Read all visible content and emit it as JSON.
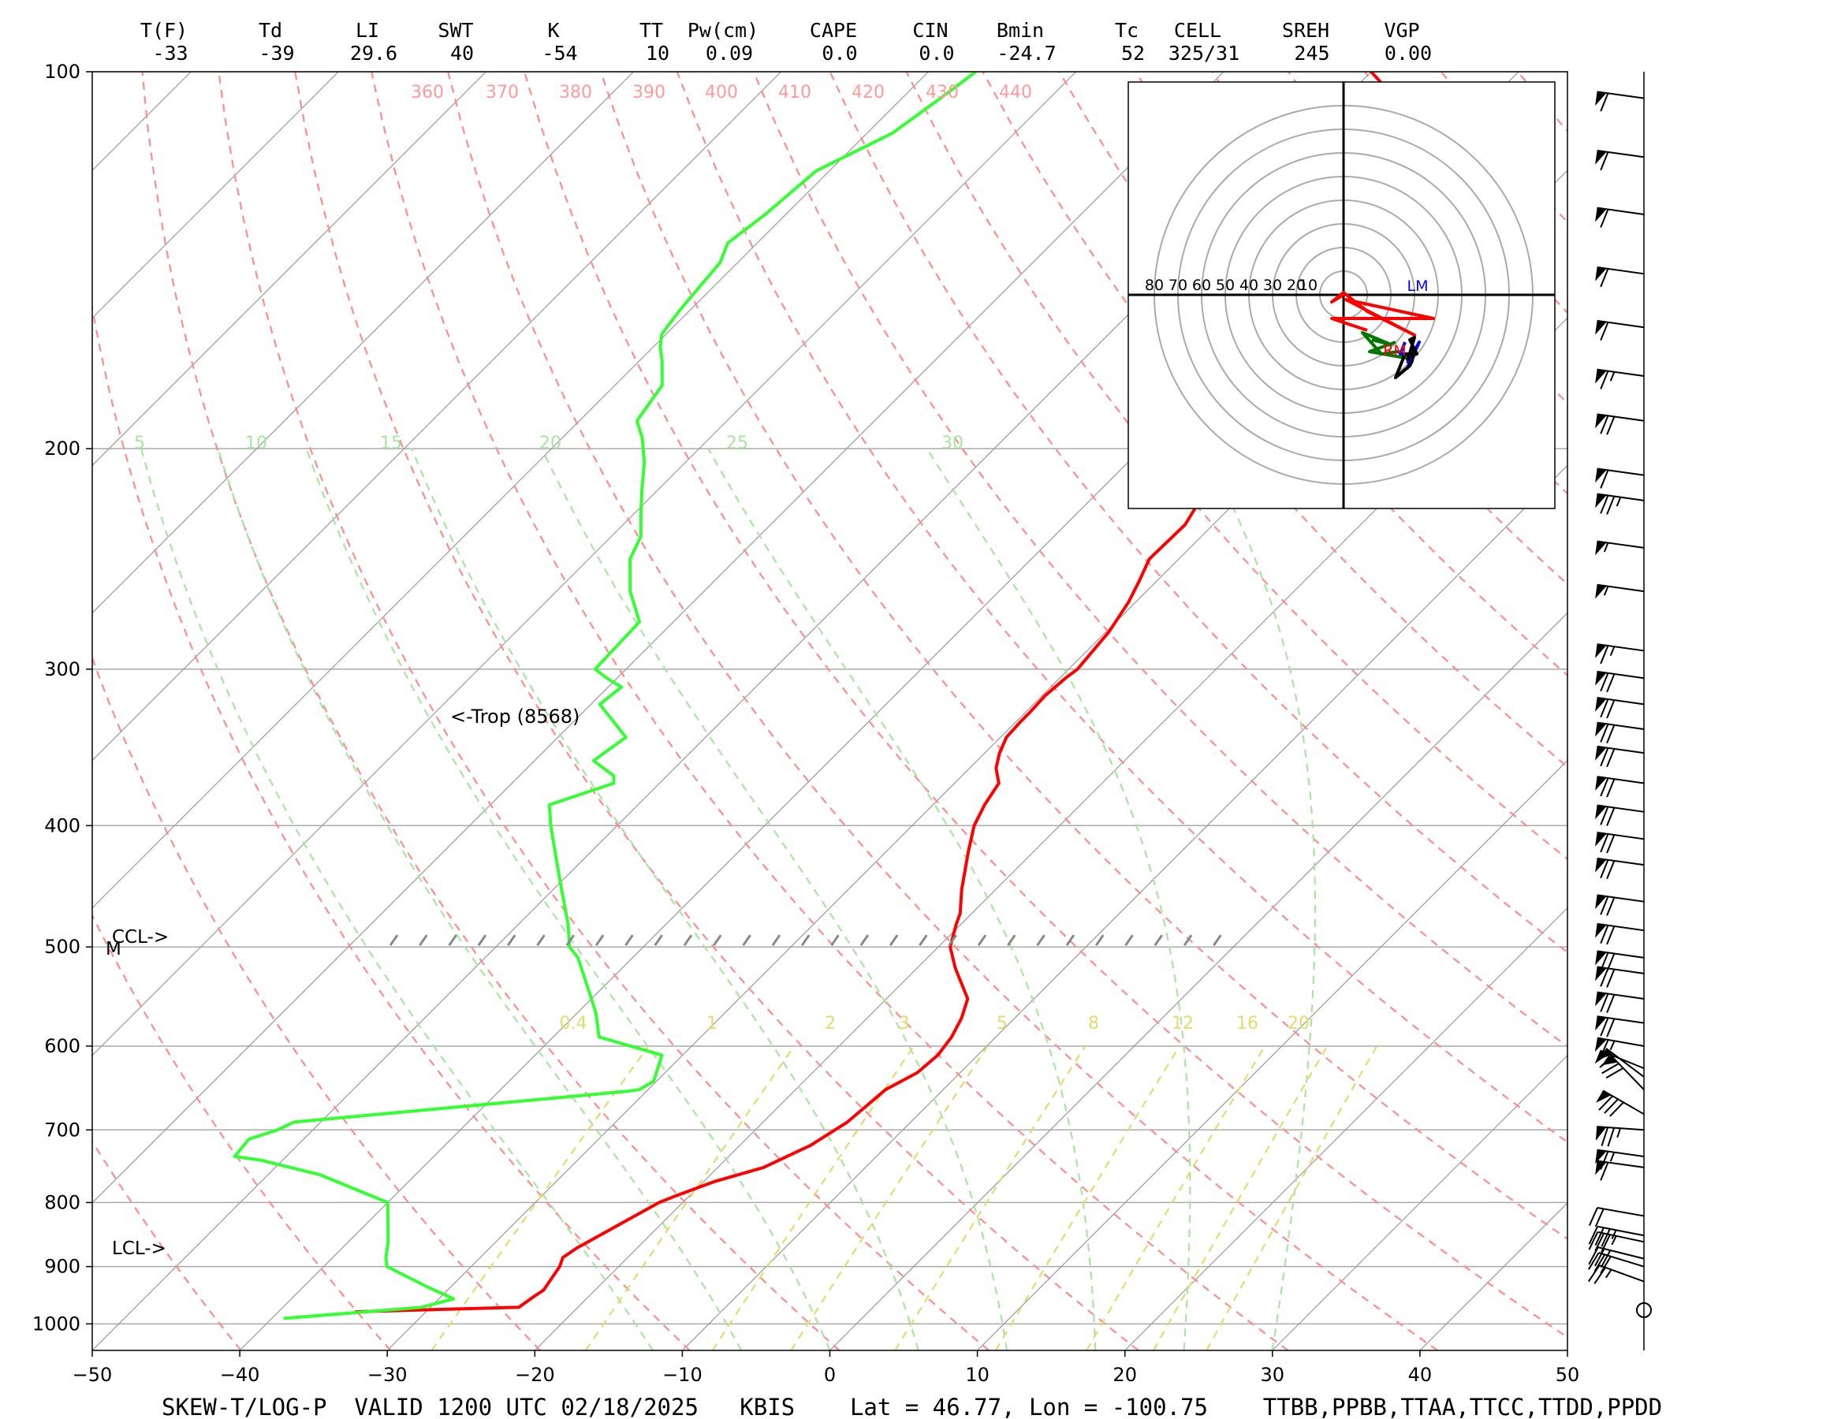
{
  "header": {
    "labels": [
      "T(F)",
      "Td",
      "LI",
      "SWT",
      "K",
      "TT",
      "Pw(cm)",
      "CAPE",
      "CIN",
      "Bmin",
      "Tc",
      "CELL",
      "SREH",
      "VGP"
    ],
    "values": [
      "-33",
      "-39",
      "29.6",
      "40",
      "-54",
      "10",
      "0.09",
      "0.0",
      "0.0",
      "-24.7",
      "52",
      "325/31",
      "245",
      "0.00"
    ]
  },
  "footer": {
    "title": "SKEW-T/LOG-P  VALID 1200 UTC 02/18/2025   KBIS    Lat = 46.77, Lon = -100.75    TTBB,PPBB,TTAA,TTCC,TTDD,PPDD"
  },
  "chart_data": {
    "type": "line",
    "title": "",
    "xlabel": "",
    "ylabel": "",
    "x_axis": {
      "range": [
        -50,
        50
      ],
      "ticks": [
        -50,
        -40,
        -30,
        -20,
        -10,
        0,
        10,
        20,
        30,
        40,
        50
      ],
      "unit": "deg C (skewed)"
    },
    "y_axis": {
      "range": [
        1050,
        100
      ],
      "scale": "log",
      "ticks": [
        1000,
        900,
        800,
        700,
        600,
        500,
        400,
        300,
        200,
        100
      ]
    },
    "grid": true,
    "colors": {
      "temperature": "#ff0000",
      "dewpoint": "#33ff33",
      "dry_adiabat": "#ff8c8c",
      "moist_adiabat": "#a8e6a0",
      "mixing_ratio": "#e0dc70",
      "isotherm": "#999999"
    },
    "dry_adiabat_labels": [
      "360",
      "370",
      "380",
      "390",
      "400",
      "410",
      "420",
      "430",
      "440"
    ],
    "moist_adiabat_labels": [
      "5",
      "10",
      "15",
      "20",
      "25",
      "30"
    ],
    "mixing_ratio_labels": [
      "0.4",
      "1",
      "2",
      "3",
      "5",
      "8",
      "12",
      "16",
      "20"
    ],
    "annotations": [
      "<-Trop (8568)",
      "CCL->",
      "M",
      "LCL->"
    ],
    "series": [
      {
        "key": "temperature",
        "points": [
          [
            978,
            -34.8
          ],
          [
            970,
            -24.0
          ],
          [
            950,
            -23.7
          ],
          [
            940,
            -23.5
          ],
          [
            900,
            -24.0
          ],
          [
            885,
            -24.4
          ],
          [
            870,
            -24.1
          ],
          [
            800,
            -21.6
          ],
          [
            790,
            -20.9
          ],
          [
            770,
            -19.3
          ],
          [
            750,
            -16.9
          ],
          [
            720,
            -15.2
          ],
          [
            700,
            -14.6
          ],
          [
            690,
            -14.3
          ],
          [
            670,
            -14.1
          ],
          [
            650,
            -13.9
          ],
          [
            630,
            -12.9
          ],
          [
            610,
            -12.7
          ],
          [
            590,
            -13.0
          ],
          [
            570,
            -13.6
          ],
          [
            550,
            -14.5
          ],
          [
            520,
            -17.4
          ],
          [
            500,
            -19.2
          ],
          [
            480,
            -20.3
          ],
          [
            470,
            -20.8
          ],
          [
            450,
            -22.3
          ],
          [
            420,
            -24.4
          ],
          [
            400,
            -25.8
          ],
          [
            385,
            -26.5
          ],
          [
            370,
            -27.0
          ],
          [
            360,
            -28.2
          ],
          [
            350,
            -29.0
          ],
          [
            340,
            -29.6
          ],
          [
            330,
            -29.7
          ],
          [
            325,
            -29.7
          ],
          [
            315,
            -29.8
          ],
          [
            305,
            -29.6
          ],
          [
            300,
            -29.4
          ],
          [
            280,
            -29.8
          ],
          [
            265,
            -30.5
          ],
          [
            255,
            -31.2
          ],
          [
            245,
            -32.0
          ],
          [
            230,
            -31.9
          ],
          [
            210,
            -33.2
          ],
          [
            205,
            -34.2
          ],
          [
            200,
            -35.0
          ],
          [
            194,
            -35.2
          ],
          [
            185,
            -36.1
          ],
          [
            175,
            -37.1
          ],
          [
            165,
            -38.2
          ],
          [
            155,
            -39.8
          ],
          [
            145,
            -40.5
          ],
          [
            135,
            -42.1
          ],
          [
            130,
            -42.8
          ],
          [
            120,
            -44.0
          ],
          [
            115,
            -45.2
          ],
          [
            110,
            -46.0
          ],
          [
            106,
            -47.2
          ],
          [
            102,
            -48.6
          ],
          [
            100,
            -50.0
          ]
        ]
      },
      {
        "key": "dewpoint",
        "points": [
          [
            990,
            -39.2
          ],
          [
            970,
            -30.6
          ],
          [
            955,
            -29.0
          ],
          [
            935,
            -31.5
          ],
          [
            900,
            -35.7
          ],
          [
            885,
            -36.4
          ],
          [
            860,
            -37.3
          ],
          [
            800,
            -40.0
          ],
          [
            760,
            -46.5
          ],
          [
            740,
            -51.5
          ],
          [
            735,
            -53.5
          ],
          [
            712,
            -53.7
          ],
          [
            700,
            -52.4
          ],
          [
            690,
            -51.8
          ],
          [
            652,
            -31.3
          ],
          [
            650,
            -30.6
          ],
          [
            640,
            -30.2
          ],
          [
            610,
            -31.4
          ],
          [
            590,
            -36.9
          ],
          [
            565,
            -38.7
          ],
          [
            550,
            -40.0
          ],
          [
            510,
            -43.7
          ],
          [
            500,
            -45.0
          ],
          [
            480,
            -46.6
          ],
          [
            440,
            -50.4
          ],
          [
            400,
            -54.5
          ],
          [
            385,
            -56.0
          ],
          [
            370,
            -53.1
          ],
          [
            365,
            -53.6
          ],
          [
            355,
            -56.0
          ],
          [
            340,
            -55.4
          ],
          [
            320,
            -59.4
          ],
          [
            310,
            -59.1
          ],
          [
            305,
            -60.7
          ],
          [
            300,
            -62.1
          ],
          [
            275,
            -62.3
          ],
          [
            260,
            -65.0
          ],
          [
            245,
            -67.2
          ],
          [
            235,
            -68.0
          ],
          [
            225,
            -69.6
          ],
          [
            215,
            -71.2
          ],
          [
            205,
            -72.8
          ],
          [
            196,
            -74.6
          ],
          [
            190,
            -76.1
          ],
          [
            178,
            -76.8
          ],
          [
            170,
            -78.5
          ],
          [
            166,
            -79.5
          ],
          [
            162,
            -80.3
          ],
          [
            155,
            -80.7
          ],
          [
            142,
            -81.2
          ],
          [
            137,
            -82.0
          ],
          [
            130,
            -81.4
          ],
          [
            120,
            -80.9
          ],
          [
            112,
            -78.3
          ],
          [
            105,
            -77.4
          ],
          [
            100,
            -76.8
          ]
        ]
      }
    ],
    "hodograph": {
      "rings": [
        10,
        20,
        30,
        40,
        50,
        60,
        70,
        80
      ],
      "labels": [
        "80",
        "70",
        "60",
        "50",
        "40",
        "30",
        "20",
        "10"
      ],
      "storm_motion_labels": [
        "LM",
        "RM"
      ]
    },
    "wind_barbs": {
      "levels_hpa": [
        975,
        925,
        900,
        887,
        860,
        850,
        820,
        750,
        735,
        700,
        680,
        650,
        635,
        625,
        600,
        575,
        550,
        525,
        510,
        485,
        460,
        430,
        410,
        390,
        370,
        350,
        335,
        320,
        305,
        290,
        260,
        240,
        220,
        210,
        190,
        175,
        160,
        145,
        130,
        117,
        105
      ],
      "direction_deg": [
        0,
        290,
        287,
        284,
        282,
        281,
        280,
        278,
        278,
        274,
        300,
        316,
        307,
        292,
        280,
        278,
        278,
        278,
        278,
        278,
        278,
        278,
        278,
        278,
        278,
        278,
        278,
        278,
        278,
        278,
        278,
        278,
        278,
        278,
        278,
        278,
        278,
        278,
        278,
        278,
        278
      ],
      "speed_kt": [
        0,
        25,
        30,
        30,
        35,
        35,
        20,
        60,
        65,
        75,
        80,
        70,
        60,
        55,
        65,
        70,
        70,
        70,
        70,
        70,
        70,
        70,
        70,
        70,
        70,
        70,
        70,
        70,
        70,
        65,
        55,
        55,
        75,
        60,
        70,
        65,
        60,
        60,
        60,
        60,
        60
      ]
    },
    "hodograph_traces": {
      "red": [
        [
          0,
          0
        ],
        [
          -5,
          -3
        ],
        [
          0,
          1
        ],
        [
          10,
          -7
        ],
        [
          30,
          -17
        ],
        [
          1,
          -2
        ],
        [
          38,
          -10
        ],
        [
          -5,
          -10
        ],
        [
          10,
          -15
        ]
      ],
      "green": [
        [
          12,
          -19
        ],
        [
          20,
          -21
        ],
        [
          8,
          -16
        ],
        [
          16,
          -25
        ],
        [
          23,
          -24
        ],
        [
          28,
          -27
        ],
        [
          11,
          -24
        ],
        [
          22,
          -20
        ]
      ],
      "blue": [
        [
          26,
          -20
        ],
        [
          24,
          -25
        ],
        [
          30,
          -25
        ],
        [
          27,
          -31
        ],
        [
          32,
          -20
        ],
        [
          27,
          -29
        ]
      ],
      "black": [
        [
          27,
          -28
        ],
        [
          30,
          -18
        ],
        [
          28,
          -19
        ],
        [
          31,
          -25
        ],
        [
          26,
          -25
        ],
        [
          22,
          -35
        ],
        [
          28,
          -30
        ],
        [
          29,
          -28
        ],
        [
          30,
          -22
        ]
      ]
    }
  }
}
